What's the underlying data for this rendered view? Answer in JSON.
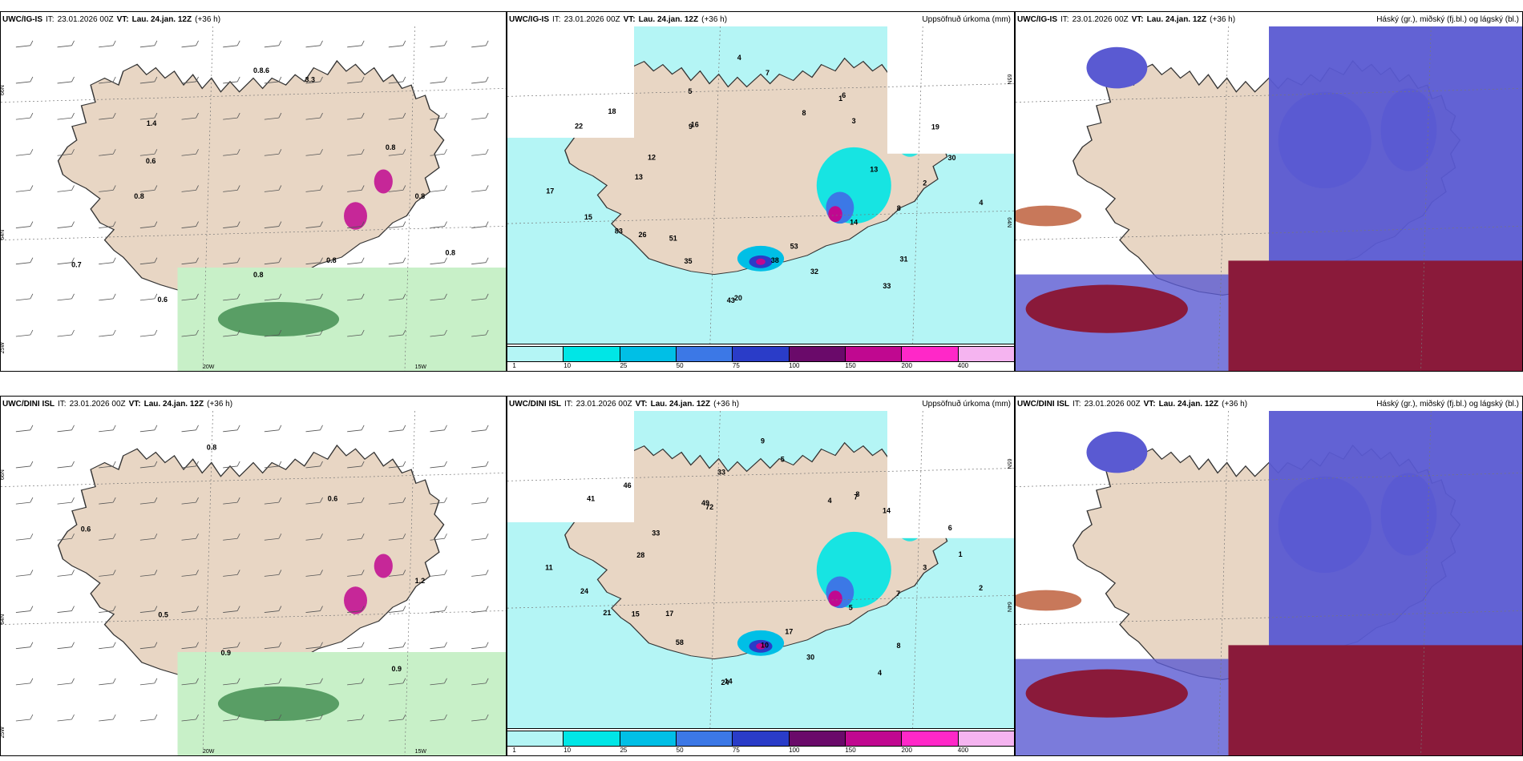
{
  "colors": {
    "land": "#e8d6c4",
    "ocean": "#ffffff",
    "precip_light": "#b4f5f5",
    "precip_cyan": "#00e6e6",
    "precip_mid": "#00bfe6",
    "precip_blue": "#3c78e6",
    "precip_deep": "#2a3cc8",
    "precip_purple": "#6a0a6a",
    "precip_magenta": "#c00890",
    "precip_pink": "#ff28c8",
    "precip_lilac": "#f5b4f0",
    "cloud_high": "#5a5ad2",
    "cloud_mid": "#8a1a3a",
    "cloud_low": "#c8785a",
    "green_light": "#c8f0c8",
    "green_dark": "#2a7a3a"
  },
  "panels": [
    {
      "id": "igis-wind",
      "model": "UWC/IG-IS",
      "it_label": "IT:",
      "it_value": "23.01.2026 00Z",
      "vt_label": "VT:",
      "vt_value": "Lau. 24.jan. 12Z",
      "lead": "(+36 h)",
      "title_right": "",
      "map_type": "wind",
      "axis_labels": [
        "66N",
        "64N",
        "25W",
        "20W",
        "15W"
      ],
      "values": [
        "0.8",
        "0.8",
        "0.8",
        "0.8",
        "0.6",
        "0.7",
        "0.8",
        "0.6",
        "1.4",
        "0.8.6",
        "3.3",
        "0.8"
      ]
    },
    {
      "id": "igis-precip",
      "model": "UWC/IG-IS",
      "it_label": "IT:",
      "it_value": "23.01.2026 00Z",
      "vt_label": "VT:",
      "vt_value": "Lau. 24.jan. 12Z",
      "lead": "(+36 h)",
      "title_right": "Uppsöfnuð úrkoma (mm)",
      "map_type": "precip",
      "axis_labels": [
        "65N",
        "64N"
      ],
      "values": [
        "2",
        "4",
        "8",
        "14",
        "31",
        "33",
        "32",
        "53",
        "38",
        "20",
        "43",
        "35",
        "83",
        "26",
        "51",
        "15",
        "17",
        "13",
        "12",
        "22",
        "18",
        "16",
        "9",
        "5",
        "4",
        "7",
        "8",
        "3",
        "1",
        "6",
        "19",
        "30",
        "13"
      ],
      "colorbar_ticks": [
        "1",
        "10",
        "25",
        "50",
        "75",
        "100",
        "150",
        "200",
        "400"
      ]
    },
    {
      "id": "igis-cloud",
      "model": "UWC/IG-IS",
      "it_label": "IT:",
      "it_value": "23.01.2026 00Z",
      "vt_label": "VT:",
      "vt_value": "Lau. 24.jan. 12Z",
      "lead": "(+36 h)",
      "title_right": "Háský (gr.), miðský (fj.bl.) og lágský (bl.)",
      "map_type": "cloud"
    },
    {
      "id": "dini-wind",
      "model": "UWC/DINI ISL",
      "it_label": "IT:",
      "it_value": "23.01.2026 00Z",
      "vt_label": "VT:",
      "vt_value": "Lau. 24.jan. 12Z",
      "lead": "(+36 h)",
      "title_right": "",
      "map_type": "wind",
      "axis_labels": [
        "66N",
        "64N",
        "25W",
        "20W",
        "15W"
      ],
      "values": [
        "1.2",
        "0.9",
        "0.9",
        "0.5",
        "0.6",
        "0.8",
        "0.6"
      ]
    },
    {
      "id": "dini-precip",
      "model": "UWC/DINI ISL",
      "it_label": "IT:",
      "it_value": "23.01.2026 00Z",
      "vt_label": "VT:",
      "vt_value": "Lau. 24.jan. 12Z",
      "lead": "(+36 h)",
      "title_right": "Uppsöfnuð úrkoma (mm)",
      "map_type": "precip",
      "axis_labels": [
        "65N",
        "64N"
      ],
      "values": [
        "3",
        "2",
        "7",
        "5",
        "8",
        "4",
        "30",
        "17",
        "10",
        "14",
        "24",
        "58",
        "21",
        "15",
        "17",
        "24",
        "11",
        "28",
        "33",
        "41",
        "46",
        "49",
        "72",
        "33",
        "9",
        "5",
        "4",
        "14",
        "8",
        "7",
        "6",
        "1"
      ],
      "colorbar_ticks": [
        "1",
        "10",
        "25",
        "50",
        "75",
        "100",
        "150",
        "200",
        "400"
      ]
    },
    {
      "id": "dini-cloud",
      "model": "UWC/DINI ISL",
      "it_label": "IT:",
      "it_value": "23.01.2026 00Z",
      "vt_label": "VT:",
      "vt_value": "Lau. 24.jan. 12Z",
      "lead": "(+36 h)",
      "title_right": "Háský (gr.), miðský (fj.bl.) og lágský (bl.)",
      "map_type": "cloud"
    }
  ]
}
